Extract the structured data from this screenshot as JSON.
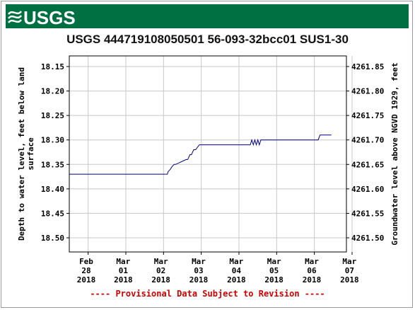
{
  "logo": {
    "text": "USGS",
    "icon": "usgs-logo-icon",
    "banner_color": "#006f41"
  },
  "chart_data": {
    "type": "line",
    "title": "USGS 444719108050501 56-093-32bcc01 SUS1-30",
    "ylabel_left": [
      "Depth to water level, feet below land",
      "surface"
    ],
    "ylabel_right": "Groundwater level above NGVD 1929, feet",
    "ylim_left": [
      18.15,
      18.5
    ],
    "y_ticks_left": [
      "18.15",
      "18.20",
      "18.25",
      "18.30",
      "18.35",
      "18.40",
      "18.45",
      "18.50"
    ],
    "y_ticks_right": [
      "4261.85",
      "4261.80",
      "4261.75",
      "4261.70",
      "4261.65",
      "4261.60",
      "4261.55",
      "4261.50"
    ],
    "y_reversed": true,
    "x_ticks": [
      [
        "Feb",
        "28",
        "2018"
      ],
      [
        "Mar",
        "01",
        "2018"
      ],
      [
        "Mar",
        "02",
        "2018"
      ],
      [
        "Mar",
        "03",
        "2018"
      ],
      [
        "Mar",
        "04",
        "2018"
      ],
      [
        "Mar",
        "05",
        "2018"
      ],
      [
        "Mar",
        "06",
        "2018"
      ],
      [
        "Mar",
        "07",
        "2018"
      ]
    ],
    "xlim_days": [
      0,
      7.35
    ],
    "grid": true,
    "line_color": "#00008b",
    "series": [
      {
        "x": [
          0,
          2.6,
          2.62,
          2.68,
          2.72,
          2.78,
          2.82,
          3.1,
          3.14,
          3.2,
          3.24,
          3.3,
          3.35,
          3.45,
          3.5,
          4.8,
          4.84,
          4.88,
          4.92,
          4.96,
          5.0,
          5.04,
          5.08,
          5.12,
          5.2,
          6.6,
          6.65,
          6.95
        ],
        "y": [
          18.37,
          18.37,
          18.365,
          18.36,
          18.355,
          18.35,
          18.35,
          18.34,
          18.34,
          18.33,
          18.33,
          18.32,
          18.32,
          18.31,
          18.31,
          18.31,
          18.3,
          18.31,
          18.3,
          18.31,
          18.3,
          18.31,
          18.3,
          18.3,
          18.3,
          18.3,
          18.29,
          18.29
        ]
      }
    ]
  },
  "footnote": "---- Provisional Data Subject to Revision ----"
}
